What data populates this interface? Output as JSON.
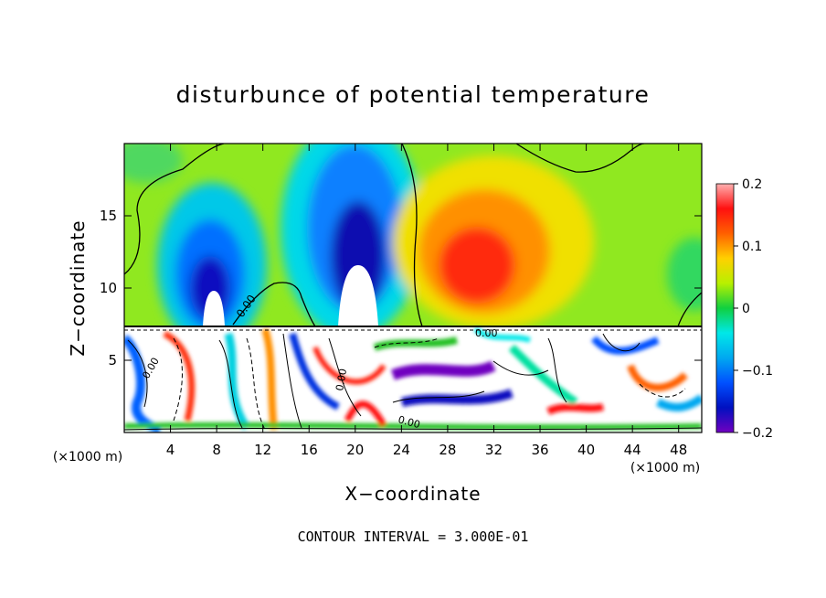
{
  "chart_data": {
    "type": "heatmap",
    "title": "disturbunce of potential temperature",
    "xlabel": "X−coordinate",
    "ylabel": "Z−coordinate",
    "x_unit": "(×1000 m)",
    "z_unit": "(×1000 m)",
    "xlim": [
      0,
      50
    ],
    "ylim": [
      0,
      20
    ],
    "x_ticks": [
      4,
      8,
      12,
      16,
      20,
      24,
      28,
      32,
      36,
      40,
      44,
      48
    ],
    "x_tick_labels": [
      "4",
      "8",
      "12",
      "16",
      "20",
      "24",
      "28",
      "32",
      "36",
      "40",
      "44",
      "48"
    ],
    "y_ticks": [
      5,
      10,
      15
    ],
    "y_tick_labels": [
      "5",
      "10",
      "15"
    ],
    "colorbar": {
      "range": [
        -0.2,
        0.2
      ],
      "ticks": [
        0.2,
        0.1,
        0,
        -0.1,
        -0.2
      ],
      "tick_labels": [
        "0.2",
        "0.1",
        "0",
        "−0.1",
        "−0.2"
      ],
      "colors": [
        "#ffb0b0",
        "#ff5c6e",
        "#ff1010",
        "#ff6000",
        "#ff9a00",
        "#ffd000",
        "#f4f000",
        "#b8f000",
        "#60e000",
        "#10d040",
        "#00e0a0",
        "#00e8e8",
        "#00a8f0",
        "#0050ff",
        "#0010c0",
        "#7000c0"
      ]
    },
    "contour_label": "0.00",
    "contour_interval_text": "CONTOUR INTERVAL = 3.000E-01",
    "features": [
      {
        "kind": "warm",
        "x": 31,
        "z": 12,
        "value": 0.13
      },
      {
        "kind": "cold",
        "x": 20,
        "z": 14,
        "value": -0.15
      },
      {
        "kind": "cold",
        "x": 8,
        "z": 12,
        "value": -0.15
      }
    ]
  }
}
